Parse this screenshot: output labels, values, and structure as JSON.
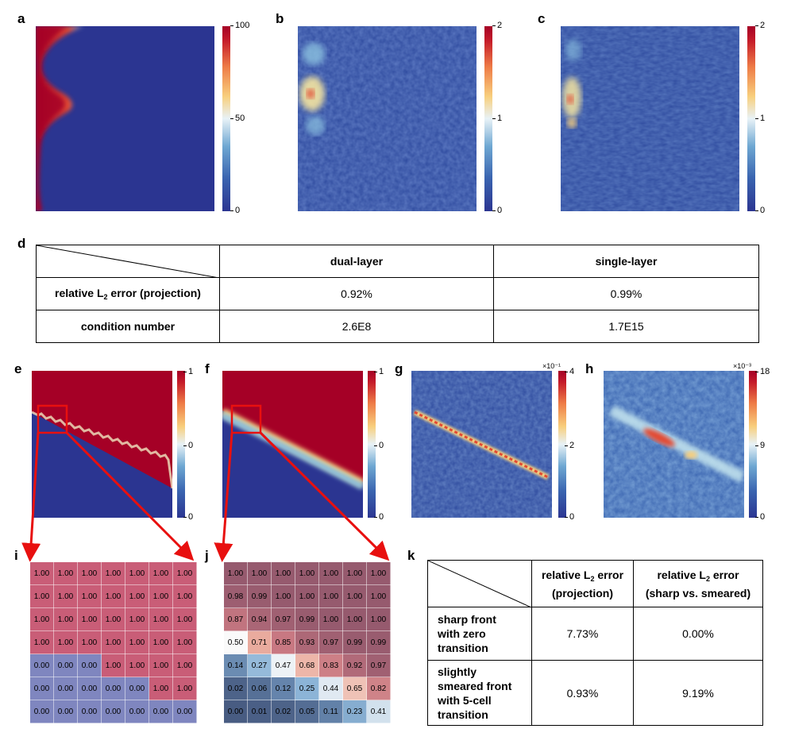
{
  "panel_labels": {
    "a": "a",
    "b": "b",
    "c": "c",
    "d": "d",
    "e": "e",
    "f": "f",
    "g": "g",
    "h": "h",
    "i": "i",
    "j": "j",
    "k": "k"
  },
  "colorbars": {
    "a": {
      "max": "100",
      "mid": "50",
      "min": "0"
    },
    "b": {
      "max": "2",
      "mid": "1",
      "min": "0"
    },
    "c": {
      "max": "2",
      "mid": "1",
      "min": "0"
    },
    "e": {
      "max": "1",
      "mid": "0",
      "min": "0"
    },
    "f": {
      "max": "1",
      "mid": "0",
      "min": "0"
    },
    "g": {
      "max": "4",
      "mid": "2",
      "min": "0",
      "scale": "×10⁻¹"
    },
    "h": {
      "max": "18",
      "mid": "9",
      "min": "0",
      "scale": "×10⁻³"
    }
  },
  "table_d": {
    "col1": "dual-layer",
    "col2": "single-layer",
    "row1_pre": "relative L",
    "row1_sub": "2",
    "row1_post": " error (projection)",
    "row1_v1": "0.92%",
    "row1_v2": "0.99%",
    "row2": "condition number",
    "row2_v1": "2.6E8",
    "row2_v2": "1.7E15"
  },
  "grid_i": [
    [
      "1.00",
      "1.00",
      "1.00",
      "1.00",
      "1.00",
      "1.00",
      "1.00"
    ],
    [
      "1.00",
      "1.00",
      "1.00",
      "1.00",
      "1.00",
      "1.00",
      "1.00"
    ],
    [
      "1.00",
      "1.00",
      "1.00",
      "1.00",
      "1.00",
      "1.00",
      "1.00"
    ],
    [
      "1.00",
      "1.00",
      "1.00",
      "1.00",
      "1.00",
      "1.00",
      "1.00"
    ],
    [
      "0.00",
      "0.00",
      "0.00",
      "1.00",
      "1.00",
      "1.00",
      "1.00"
    ],
    [
      "0.00",
      "0.00",
      "0.00",
      "0.00",
      "0.00",
      "1.00",
      "1.00"
    ],
    [
      "0.00",
      "0.00",
      "0.00",
      "0.00",
      "0.00",
      "0.00",
      "0.00"
    ]
  ],
  "grid_j": [
    [
      "1.00",
      "1.00",
      "1.00",
      "1.00",
      "1.00",
      "1.00",
      "1.00"
    ],
    [
      "0.98",
      "0.99",
      "1.00",
      "1.00",
      "1.00",
      "1.00",
      "1.00"
    ],
    [
      "0.87",
      "0.94",
      "0.97",
      "0.99",
      "1.00",
      "1.00",
      "1.00"
    ],
    [
      "0.50",
      "0.71",
      "0.85",
      "0.93",
      "0.97",
      "0.99",
      "0.99"
    ],
    [
      "0.14",
      "0.27",
      "0.47",
      "0.68",
      "0.83",
      "0.92",
      "0.97"
    ],
    [
      "0.02",
      "0.06",
      "0.12",
      "0.25",
      "0.44",
      "0.65",
      "0.82"
    ],
    [
      "0.00",
      "0.01",
      "0.02",
      "0.05",
      "0.11",
      "0.23",
      "0.41"
    ]
  ],
  "table_k": {
    "h1_pre": "relative L",
    "h1_sub": "2",
    "h1_post": " error",
    "h1_line2": "(projection)",
    "h2_pre": "relative L",
    "h2_sub": "2",
    "h2_post": " error",
    "h2_line2": "(sharp vs. smeared)",
    "r1_l1": "sharp front",
    "r1_l2": "with zero",
    "r1_l3": "transition",
    "r1_v1": "7.73%",
    "r1_v2": "0.00%",
    "r2_l1": "slightly",
    "r2_l2": "smeared front",
    "r2_l3": "with 5-cell",
    "r2_l4": "transition",
    "r2_v1": "0.93%",
    "r2_v2": "9.19%"
  },
  "colors": {
    "red": "#a50026",
    "blue": "#2b3591",
    "arrow": "#e8100f"
  }
}
